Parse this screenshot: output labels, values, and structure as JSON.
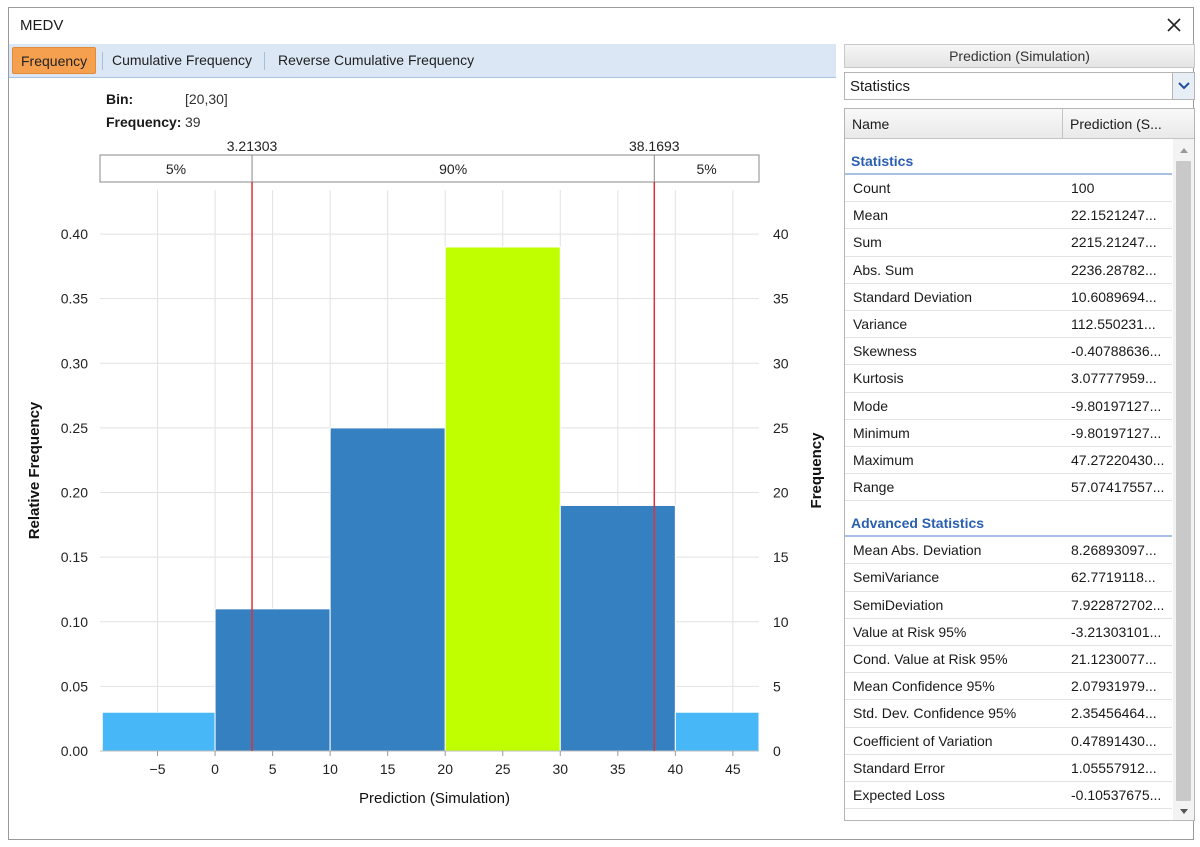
{
  "window": {
    "title": "MEDV"
  },
  "tabs": [
    {
      "label": "Frequency",
      "active": true
    },
    {
      "label": "Cumulative Frequency",
      "active": false
    },
    {
      "label": "Reverse Cumulative Frequency",
      "active": false
    }
  ],
  "info": {
    "bin_label": "Bin:",
    "bin_value": "[20,30]",
    "freq_label": "Frequency:",
    "freq_value": "39"
  },
  "chart_data": {
    "type": "bar",
    "xlabel": "Prediction (Simulation)",
    "ylabel_left": "Relative Frequency",
    "ylabel_right": "Frequency",
    "xlim": [
      -10,
      47.27
    ],
    "ylim": [
      0,
      0.4341
    ],
    "x_ticks": [
      -5,
      0,
      5,
      10,
      15,
      20,
      25,
      30,
      35,
      40,
      45
    ],
    "x_tick_labels": [
      "−5",
      "0",
      "5",
      "10",
      "15",
      "20",
      "25",
      "30",
      "35",
      "40",
      "45"
    ],
    "y_ticks_left": [
      0,
      0.05,
      0.1,
      0.15,
      0.2,
      0.25,
      0.3,
      0.35,
      0.4
    ],
    "y_tick_labels_left": [
      "0.00",
      "0.05",
      "0.10",
      "0.15",
      "0.20",
      "0.25",
      "0.30",
      "0.35",
      "0.40"
    ],
    "y_ticks_right": [
      0,
      5,
      10,
      15,
      20,
      25,
      30,
      35,
      40
    ],
    "bars": [
      {
        "x0": -9.8,
        "x1": 0,
        "rel": 0.03,
        "freq": 3,
        "color": "#47b7f8"
      },
      {
        "x0": 0,
        "x1": 10,
        "rel": 0.11,
        "freq": 11,
        "color": "#3580c0"
      },
      {
        "x0": 10,
        "x1": 20,
        "rel": 0.25,
        "freq": 25,
        "color": "#3580c0"
      },
      {
        "x0": 20,
        "x1": 30,
        "rel": 0.39,
        "freq": 39,
        "color": "#bfff00"
      },
      {
        "x0": 30,
        "x1": 40,
        "rel": 0.19,
        "freq": 19,
        "color": "#3580c0"
      },
      {
        "x0": 40,
        "x1": 47.27,
        "rel": 0.03,
        "freq": 3,
        "color": "#47b7f8"
      }
    ],
    "markers": [
      {
        "value": 3.21303,
        "label": "3.21303"
      },
      {
        "value": 38.1693,
        "label": "38.1693"
      }
    ],
    "percent_bands": [
      "5%",
      "90%",
      "5%"
    ],
    "marker_color": "#e0303a"
  },
  "panel": {
    "header": "Prediction (Simulation)",
    "dropdown_value": "Statistics",
    "columns": [
      "Name",
      "Prediction (S..."
    ],
    "groups": [
      {
        "title": "Statistics",
        "rows": [
          {
            "name": "Count",
            "value": "100"
          },
          {
            "name": "Mean",
            "value": "22.1521247..."
          },
          {
            "name": "Sum",
            "value": "2215.21247..."
          },
          {
            "name": "Abs. Sum",
            "value": "2236.28782..."
          },
          {
            "name": "Standard Deviation",
            "value": "10.6089694..."
          },
          {
            "name": "Variance",
            "value": "112.550231..."
          },
          {
            "name": "Skewness",
            "value": "-0.40788636..."
          },
          {
            "name": "Kurtosis",
            "value": "3.07777959..."
          },
          {
            "name": "Mode",
            "value": "-9.80197127..."
          },
          {
            "name": "Minimum",
            "value": "-9.80197127..."
          },
          {
            "name": "Maximum",
            "value": "47.27220430..."
          },
          {
            "name": "Range",
            "value": "57.07417557..."
          }
        ]
      },
      {
        "title": "Advanced Statistics",
        "rows": [
          {
            "name": "Mean Abs. Deviation",
            "value": "8.26893097..."
          },
          {
            "name": "SemiVariance",
            "value": "62.7719118..."
          },
          {
            "name": "SemiDeviation",
            "value": "7.922872702..."
          },
          {
            "name": "Value at Risk 95%",
            "value": "-3.21303101..."
          },
          {
            "name": "Cond. Value at Risk 95%",
            "value": "21.1230077..."
          },
          {
            "name": "Mean Confidence 95%",
            "value": "2.07931979..."
          },
          {
            "name": "Std. Dev. Confidence 95%",
            "value": "2.35456464..."
          },
          {
            "name": "Coefficient of Variation",
            "value": "0.47891430..."
          },
          {
            "name": "Standard Error",
            "value": "1.05557912..."
          },
          {
            "name": "Expected Loss",
            "value": "-0.10537675..."
          }
        ]
      }
    ]
  }
}
